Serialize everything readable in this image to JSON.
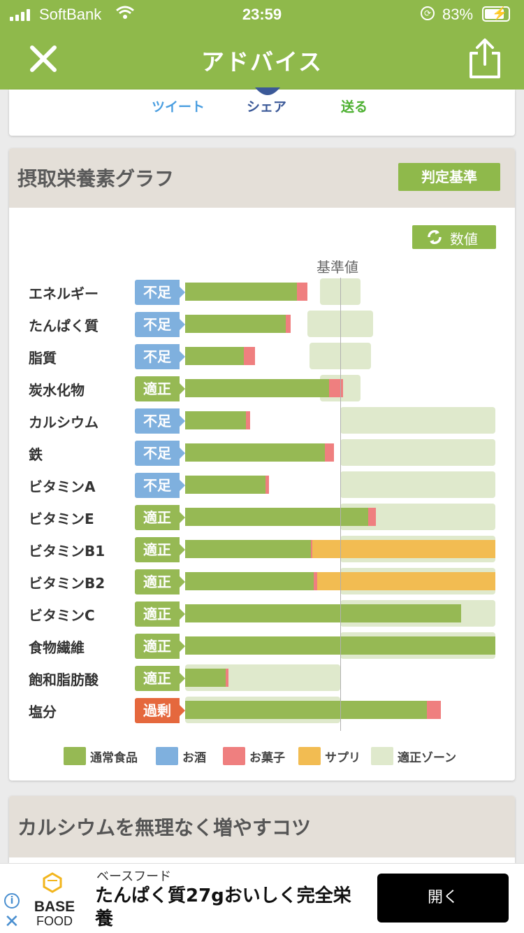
{
  "status": {
    "carrier": "SoftBank",
    "time": "23:59",
    "battery_pct": "83%",
    "battery_level": 0.83
  },
  "nav": {
    "title": "アドバイス",
    "close_icon": "close-icon",
    "share_icon": "share-icon"
  },
  "share": {
    "tweet": "ツイート",
    "facebook": "シェア",
    "line": "送る"
  },
  "graph": {
    "title": "摂取栄養素グラフ",
    "criteria_button": "判定基準",
    "values_button": "数値",
    "baseline_label": "基準値",
    "colors": {
      "normal": "#96b954",
      "alcohol": "#7fb0de",
      "sweets": "#ef7f7f",
      "supplement": "#f2bc52",
      "zone": "#dfe9cc",
      "badge_low": "#7fb0de",
      "badge_ok": "#96b954",
      "badge_high": "#e5683d"
    },
    "rows": [
      {
        "name": "エネルギー",
        "status": "不足",
        "status_type": "low"
      },
      {
        "name": "たんぱく質",
        "status": "不足",
        "status_type": "low"
      },
      {
        "name": "脂質",
        "status": "不足",
        "status_type": "low"
      },
      {
        "name": "炭水化物",
        "status": "適正",
        "status_type": "ok"
      },
      {
        "name": "カルシウム",
        "status": "不足",
        "status_type": "low"
      },
      {
        "name": "鉄",
        "status": "不足",
        "status_type": "low"
      },
      {
        "name": "ビタミンA",
        "status": "不足",
        "status_type": "low"
      },
      {
        "name": "ビタミンE",
        "status": "適正",
        "status_type": "ok"
      },
      {
        "name": "ビタミンB1",
        "status": "適正",
        "status_type": "ok"
      },
      {
        "name": "ビタミンB2",
        "status": "適正",
        "status_type": "ok"
      },
      {
        "name": "ビタミンC",
        "status": "適正",
        "status_type": "ok"
      },
      {
        "name": "食物繊維",
        "status": "適正",
        "status_type": "ok"
      },
      {
        "name": "飽和脂肪酸",
        "status": "適正",
        "status_type": "ok"
      },
      {
        "name": "塩分",
        "status": "過剰",
        "status_type": "high"
      }
    ],
    "legend": [
      {
        "label": "通常食品",
        "color": "#96b954"
      },
      {
        "label": "お酒",
        "color": "#7fb0de"
      },
      {
        "label": "お菓子",
        "color": "#ef7f7f"
      },
      {
        "label": "サプリ",
        "color": "#f2bc52"
      },
      {
        "label": "適正ゾーン",
        "color": "#dfe9cc"
      }
    ]
  },
  "chart_data": {
    "type": "bar",
    "categories": [
      "エネルギー",
      "たんぱく質",
      "脂質",
      "炭水化物",
      "カルシウム",
      "鉄",
      "ビタミンA",
      "ビタミンE",
      "ビタミンB1",
      "ビタミンB2",
      "ビタミンC",
      "食物繊維",
      "飽和脂肪酸",
      "塩分"
    ],
    "baseline": 1.0,
    "series": [
      {
        "name": "通常食品",
        "values": [
          0.72,
          0.65,
          0.38,
          0.93,
          0.39,
          0.9,
          0.52,
          1.18,
          0.81,
          0.83,
          1.78,
          2.0,
          0.26,
          1.56
        ]
      },
      {
        "name": "お酒",
        "values": [
          0,
          0,
          0,
          0,
          0,
          0,
          0,
          0,
          0,
          0,
          0,
          0,
          0,
          0
        ]
      },
      {
        "name": "お菓子",
        "values": [
          0.07,
          0.03,
          0.07,
          0.09,
          0.03,
          0.06,
          0.02,
          0.05,
          0.01,
          0.02,
          0,
          0,
          0.02,
          0.09
        ]
      },
      {
        "name": "サプリ",
        "values": [
          0,
          0,
          0,
          0,
          0,
          0,
          0,
          0,
          1.18,
          1.15,
          0,
          0,
          0,
          0
        ]
      }
    ],
    "zones": [
      [
        0.87,
        1.13
      ],
      [
        0.79,
        1.21
      ],
      [
        0.8,
        1.2
      ],
      [
        0.87,
        1.13
      ],
      [
        1.0,
        2.0
      ],
      [
        1.0,
        2.0
      ],
      [
        1.0,
        2.0
      ],
      [
        1.0,
        2.0
      ],
      [
        1.0,
        2.0
      ],
      [
        1.0,
        2.0
      ],
      [
        1.0,
        2.0
      ],
      [
        1.0,
        2.0
      ],
      [
        0,
        1.0
      ],
      [
        0,
        1.0
      ]
    ]
  },
  "tips": {
    "title": "カルシウムを無理なく増やすコツ"
  },
  "ad": {
    "advertiser": "ベースフード",
    "logo_line1": "BASE",
    "logo_line2": "FOOD",
    "headline": "たんぱく質27gおいしく完全栄養",
    "cta": "開く"
  }
}
